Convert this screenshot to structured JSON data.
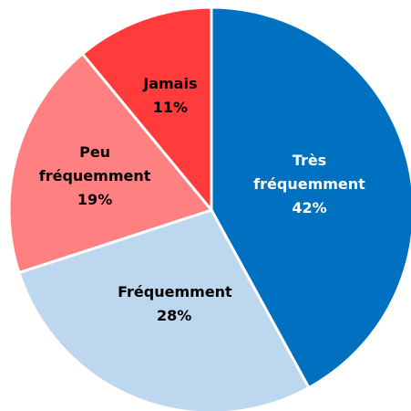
{
  "chart_data": {
    "type": "pie",
    "categories": [
      "Très fréquemment",
      "Fréquemment",
      "Peu fréquemment",
      "Jamais"
    ],
    "values": [
      42,
      28,
      19,
      11
    ],
    "value_labels": [
      "42%",
      "28%",
      "19%",
      "11%"
    ],
    "colors": [
      "#0070c0",
      "#bdd7ee",
      "#ff8080",
      "#ff3b3b"
    ],
    "label_colors": [
      "#ffffff",
      "#000000",
      "#000000",
      "#000000"
    ]
  }
}
